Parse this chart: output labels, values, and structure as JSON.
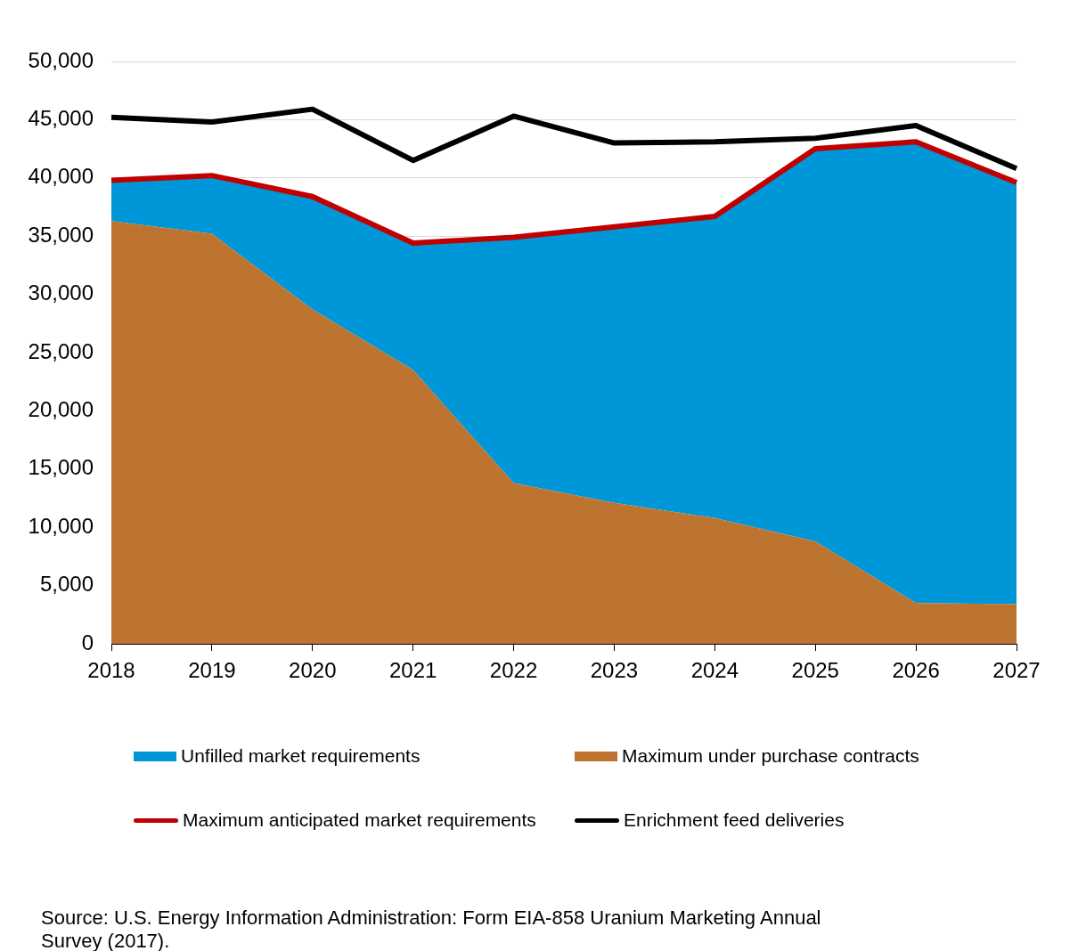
{
  "chart_data": {
    "type": "area",
    "stacked": true,
    "grid": "y",
    "legend": "bottom",
    "marker": "none",
    "line_style": "solid",
    "categories": [
      "2018",
      "2019",
      "2020",
      "2021",
      "2022",
      "2023",
      "2024",
      "2025",
      "2026",
      "2027"
    ],
    "ylim": [
      0,
      50000
    ],
    "yticks": [
      0,
      {
        "value": 5000,
        "label": "5,000"
      },
      {
        "value": 10000,
        "label": "10,000"
      },
      {
        "value": 15000,
        "label": "15,000"
      },
      {
        "value": 20000,
        "label": "20,000"
      },
      {
        "value": 25000,
        "label": "25,000"
      },
      {
        "value": 30000,
        "label": "30,000"
      },
      {
        "value": 35000,
        "label": "35,000"
      },
      {
        "value": 40000,
        "label": "40,000"
      },
      {
        "value": 45000,
        "label": "45,000"
      },
      {
        "value": 50000,
        "label": "50,000"
      }
    ],
    "series": [
      {
        "name": "Maximum under purchase contracts",
        "type": "area",
        "color": "#bc7430",
        "values": [
          36300,
          35200,
          28700,
          23500,
          13800,
          12100,
          10800,
          8800,
          3500,
          3400
        ]
      },
      {
        "name": "Unfilled market requirements",
        "type": "area",
        "color": "#0097d8",
        "values": [
          3500,
          5000,
          9700,
          10900,
          21100,
          23700,
          25900,
          33700,
          39600,
          36200
        ]
      },
      {
        "name": "Maximum anticipated market requirements",
        "type": "line",
        "color": "#c00000",
        "values": [
          39800,
          40200,
          38400,
          34400,
          34900,
          35800,
          36700,
          42500,
          43100,
          39600
        ]
      },
      {
        "name": "Enrichment feed deliveries",
        "type": "line",
        "color": "#000000",
        "values": [
          45200,
          44800,
          45900,
          41500,
          45300,
          43000,
          43100,
          43400,
          44500,
          40800
        ]
      }
    ],
    "annotations": [
      "Source: U.S. Energy Information Administration: Form EIA-858 Uranium Marketing Annual Survey (2017)."
    ]
  }
}
